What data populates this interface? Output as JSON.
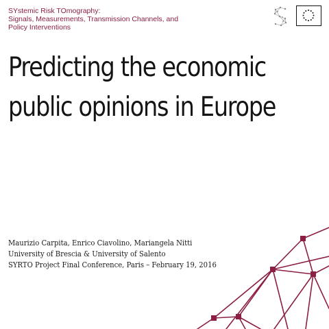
{
  "header": {
    "project_lines": [
      "SYstemic Risk TOmography:",
      "Signals, Measurements, Transmission Channels, and",
      "Policy Interventions"
    ],
    "logo_icon": "syrto-s-logo-icon",
    "flag_icon": "eu-flag-icon"
  },
  "title": {
    "lines": [
      "Predicting the economic",
      "public opinions in Europe"
    ]
  },
  "credits": {
    "authors": "Maurizio Carpita, Enrico Ciavolino, Mariangela Nitti",
    "affiliations": "University of Brescia & University of Salento",
    "event": "SYRTO Project Final Conference, Paris – February 19, 2016"
  },
  "colors": {
    "accent": "#8b1f45",
    "text": "#141414",
    "network": "#8b1f45"
  }
}
